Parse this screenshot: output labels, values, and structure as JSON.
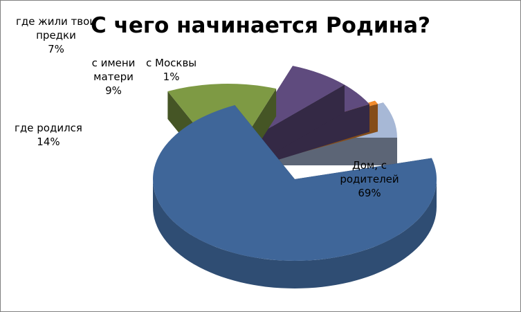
{
  "chart_data": {
    "type": "pie",
    "title": "С чего начинается Родина?",
    "slices": [
      {
        "label": "Дом, с родителей",
        "value": 69,
        "value_label": "69%",
        "color": "#3f6699"
      },
      {
        "label": "где родился",
        "value": 14,
        "value_label": "14%",
        "color": "#7e9a44"
      },
      {
        "label": "где жили твои предки",
        "value": 7,
        "value_label": "7%",
        "color": "#5f4b7e"
      },
      {
        "label": "с имени матери",
        "value": 9,
        "value_label": "9%",
        "color": "#5f4b7e"
      },
      {
        "label": "с Москвы",
        "value": 1,
        "value_label": "1%",
        "color": "#f28c2d"
      },
      {
        "label": "",
        "value": 0,
        "value_label": "",
        "color": "#a7b8d6"
      }
    ],
    "three_d": true,
    "exploded": true,
    "legend": "none"
  }
}
